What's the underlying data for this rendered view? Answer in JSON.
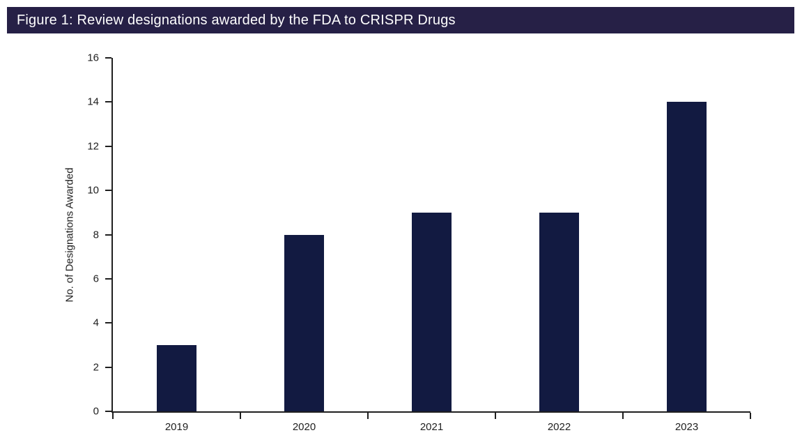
{
  "header": {
    "title": "Figure 1: Review designations awarded by the FDA to CRISPR Drugs"
  },
  "colors": {
    "header_bg": "#262046",
    "bar": "#121a41",
    "axis": "#1f1f1f",
    "text": "#1f1f1f",
    "title_text": "#ffffff"
  },
  "chart_data": {
    "type": "bar",
    "title": "Figure 1: Review designations awarded by the FDA to CRISPR Drugs",
    "categories": [
      "2019",
      "2020",
      "2021",
      "2022",
      "2023"
    ],
    "values": [
      3,
      8,
      9,
      9,
      14
    ],
    "xlabel": "",
    "ylabel": "No. of Designations Awarded",
    "ylim": [
      0,
      16
    ],
    "ytick_step": 2,
    "grid": false,
    "legend": "none",
    "bar_color": "#121a41"
  }
}
